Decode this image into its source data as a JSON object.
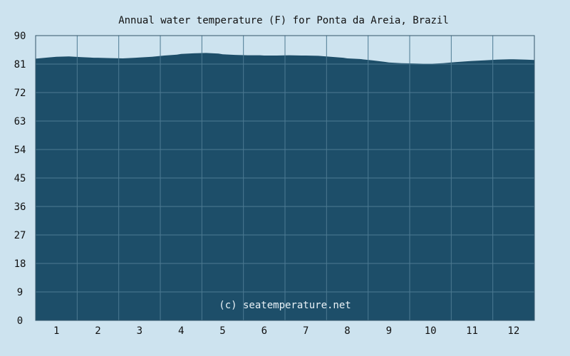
{
  "chart_data": {
    "type": "area",
    "title": "Annual water temperature (F) for Ponta da Areia, Brazil",
    "watermark": "(c) seatemperature.net",
    "xlabel": "",
    "ylabel": "",
    "ylim": [
      0,
      90
    ],
    "xlim": [
      0.5,
      12.5
    ],
    "y_ticks": [
      0,
      9,
      18,
      27,
      36,
      45,
      54,
      63,
      72,
      81,
      90
    ],
    "x_ticks": [
      1,
      2,
      3,
      4,
      5,
      6,
      7,
      8,
      9,
      10,
      11,
      12
    ],
    "x_tick_labels": [
      "1",
      "2",
      "3",
      "4",
      "5",
      "6",
      "7",
      "8",
      "9",
      "10",
      "11",
      "12"
    ],
    "grid": true,
    "colors": {
      "background": "#cde3ef",
      "fill": "#1d4e69",
      "grid": "#4d7a92",
      "axis": "#33566a"
    },
    "series": [
      {
        "x": [
          0.5,
          0.8,
          1.0,
          1.3,
          1.6,
          1.9,
          2.0,
          2.3,
          2.6,
          2.9,
          3.0,
          3.3,
          3.6,
          3.9,
          4.0,
          4.3,
          4.6,
          4.9,
          5.0,
          5.3,
          5.6,
          5.9,
          6.0,
          6.3,
          6.6,
          6.9,
          7.0,
          7.3,
          7.6,
          7.9,
          8.0,
          8.3,
          8.6,
          8.9,
          9.0,
          9.3,
          9.6,
          9.9,
          10.0,
          10.3,
          10.6,
          10.9,
          11.0,
          11.3,
          11.6,
          11.9,
          12.0,
          12.3,
          12.5
        ],
        "values": [
          82.7,
          83.1,
          83.3,
          83.4,
          83.2,
          83.0,
          83.0,
          82.9,
          82.8,
          83.0,
          83.1,
          83.3,
          83.7,
          84.0,
          84.2,
          84.4,
          84.5,
          84.3,
          84.1,
          83.9,
          83.8,
          83.8,
          83.7,
          83.7,
          83.8,
          83.7,
          83.7,
          83.6,
          83.3,
          83.0,
          82.8,
          82.6,
          82.2,
          81.7,
          81.5,
          81.3,
          81.2,
          81.1,
          81.1,
          81.3,
          81.6,
          81.9,
          82.0,
          82.2,
          82.4,
          82.5,
          82.5,
          82.4,
          82.3
        ]
      }
    ]
  }
}
